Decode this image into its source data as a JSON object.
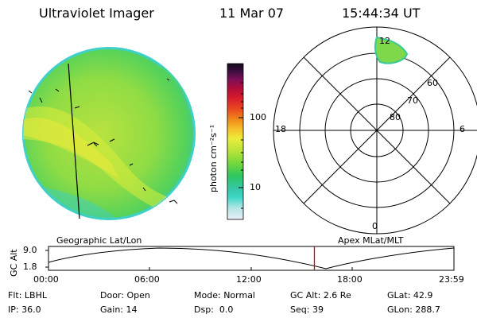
{
  "header": {
    "title": "Ultraviolet Imager",
    "date": "11 Mar 07",
    "time": "15:44:34 UT"
  },
  "colorbar": {
    "label": "photon cm⁻²s⁻¹",
    "ticks": [
      "100",
      "10"
    ],
    "scale": "log",
    "stops": [
      "#e9eef7",
      "#b8e6e6",
      "#3fd6c8",
      "#36c7a7",
      "#2fc65f",
      "#73d83b",
      "#b8e43a",
      "#ecec3a",
      "#f6c02a",
      "#f08a1a",
      "#e84820",
      "#d81a2d",
      "#b00d3a",
      "#7c0f55",
      "#3c0d3e",
      "#120b1a"
    ]
  },
  "polar_plot": {
    "mlt_labels": [
      "12",
      "18",
      "6",
      "0"
    ],
    "lat_labels": [
      "60",
      "70",
      "80"
    ]
  },
  "altitude_panel": {
    "ylabel": "GC Alt",
    "y_ticks": [
      "9.0",
      "1.8"
    ],
    "left_title": "Geographic Lat/Lon",
    "right_title": "Apex MLat/MLT",
    "x_ticks": [
      "00:00",
      "06:00",
      "12:00",
      "18:00",
      "23:59"
    ],
    "current_time_hours": 15.74,
    "colors": {
      "curve": "#000000",
      "marker": "#e00000"
    }
  },
  "status": {
    "row1": [
      {
        "label": "Flt:",
        "value": "LBHL"
      },
      {
        "label": "Door:",
        "value": "Open"
      },
      {
        "label": "Mode:",
        "value": "Normal"
      },
      {
        "label": "GC Alt:",
        "value": "2.6 Re"
      },
      {
        "label": "GLat:",
        "value": "42.9"
      }
    ],
    "row2": [
      {
        "label": "IP:",
        "value": "36.0"
      },
      {
        "label": "Gain:",
        "value": "14"
      },
      {
        "label": "Dsp:",
        "value": "0.0"
      },
      {
        "label": "Seq:",
        "value": "39"
      },
      {
        "label": "GLon:",
        "value": "288.7"
      }
    ]
  }
}
